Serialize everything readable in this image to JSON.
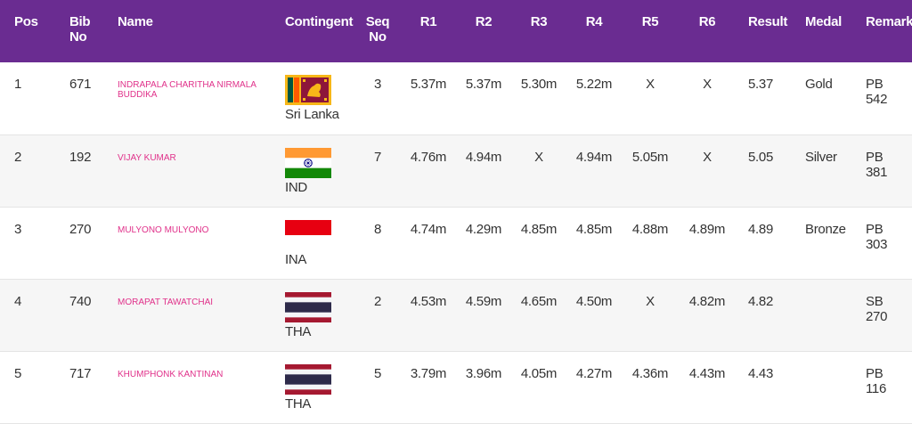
{
  "headers": {
    "pos": "Pos",
    "bib": "Bib No",
    "name": "Name",
    "contingent": "Contingent",
    "seq": "Seq No",
    "r1": "R1",
    "r2": "R2",
    "r3": "R3",
    "r4": "R4",
    "r5": "R5",
    "r6": "R6",
    "result": "Result",
    "medal": "Medal",
    "remark": "Remark"
  },
  "rows": [
    {
      "pos": "1",
      "bib": "671",
      "name": "INDRAPALA CHARITHA NIRMALA BUDDIKA",
      "contingent": "Sri Lanka",
      "flag": "sri-lanka-flag-icon",
      "seq": "3",
      "r1": "5.37m",
      "r2": "5.37m",
      "r3": "5.30m",
      "r4": "5.22m",
      "r5": "X",
      "r6": "X",
      "result": "5.37",
      "medal": "Gold",
      "remark": "PB 542"
    },
    {
      "pos": "2",
      "bib": "192",
      "name": "VIJAY KUMAR",
      "contingent": "IND",
      "flag": "india-flag-icon",
      "seq": "7",
      "r1": "4.76m",
      "r2": "4.94m",
      "r3": "X",
      "r4": "4.94m",
      "r5": "5.05m",
      "r6": "X",
      "result": "5.05",
      "medal": "Silver",
      "remark": "PB 381"
    },
    {
      "pos": "3",
      "bib": "270",
      "name": "MULYONO MULYONO",
      "contingent": "INA",
      "flag": "indonesia-flag-icon",
      "seq": "8",
      "r1": "4.74m",
      "r2": "4.29m",
      "r3": "4.85m",
      "r4": "4.85m",
      "r5": "4.88m",
      "r6": "4.89m",
      "result": "4.89",
      "medal": "Bronze",
      "remark": "PB 303"
    },
    {
      "pos": "4",
      "bib": "740",
      "name": "MORAPAT TAWATCHAI",
      "contingent": "THA",
      "flag": "thailand-flag-icon",
      "seq": "2",
      "r1": "4.53m",
      "r2": "4.59m",
      "r3": "4.65m",
      "r4": "4.50m",
      "r5": "X",
      "r6": "4.82m",
      "result": "4.82",
      "medal": "",
      "remark": "SB 270"
    },
    {
      "pos": "5",
      "bib": "717",
      "name": "KHUMPHONK KANTINAN",
      "contingent": "THA",
      "flag": "thailand-flag-icon",
      "seq": "5",
      "r1": "3.79m",
      "r2": "3.96m",
      "r3": "4.05m",
      "r4": "4.27m",
      "r5": "4.36m",
      "r6": "4.43m",
      "result": "4.43",
      "medal": "",
      "remark": "PB 116"
    }
  ],
  "colors": {
    "header_bg": "#6a2c91",
    "header_text": "#ffffff",
    "name_text": "#e0318a",
    "row_alt_bg": "#f6f6f6"
  }
}
